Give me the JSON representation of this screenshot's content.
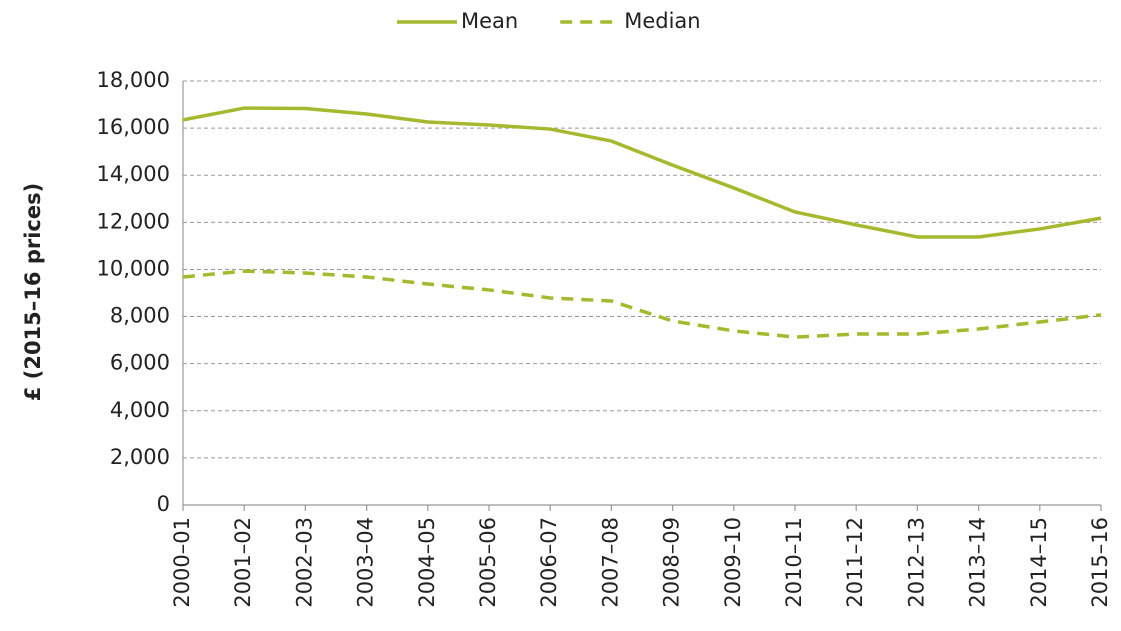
{
  "chart_data": {
    "type": "line",
    "y_label": "£ (2015–16 prices)",
    "categories": [
      "2000–01",
      "2001–02",
      "2002–03",
      "2003–04",
      "2004–05",
      "2005–06",
      "2006–07",
      "2007–08",
      "2008–09",
      "2009–10",
      "2010–11",
      "2011–12",
      "2012–13",
      "2013–14",
      "2014–15",
      "2015–16"
    ],
    "series": [
      {
        "name": "Mean",
        "color": "#a5b92f",
        "dash": "solid",
        "values": [
          16350,
          16850,
          16830,
          16600,
          16260,
          16130,
          15960,
          15450,
          14430,
          13460,
          12440,
          11890,
          11380,
          11380,
          11720,
          12180
        ]
      },
      {
        "name": "Median",
        "color": "#a5b92f",
        "dash": "dashed",
        "values": [
          9680,
          9930,
          9850,
          9680,
          9380,
          9130,
          8790,
          8660,
          7810,
          7390,
          7130,
          7260,
          7260,
          7470,
          7770,
          8070
        ]
      }
    ],
    "ylim": [
      0,
      18000
    ],
    "yticks": [
      0,
      {
        "value": 2000,
        "label": "2,000"
      },
      {
        "value": 4000,
        "label": "4,000"
      },
      {
        "value": 6000,
        "label": "6,000"
      },
      {
        "value": 8000,
        "label": "8,000"
      },
      {
        "value": 10000,
        "label": "10,000"
      },
      {
        "value": 12000,
        "label": "12,000"
      },
      {
        "value": 14000,
        "label": "14,000"
      },
      {
        "value": 16000,
        "label": "16,000"
      },
      {
        "value": 18000,
        "label": "18,000"
      }
    ],
    "grid": true,
    "legend": "top"
  }
}
